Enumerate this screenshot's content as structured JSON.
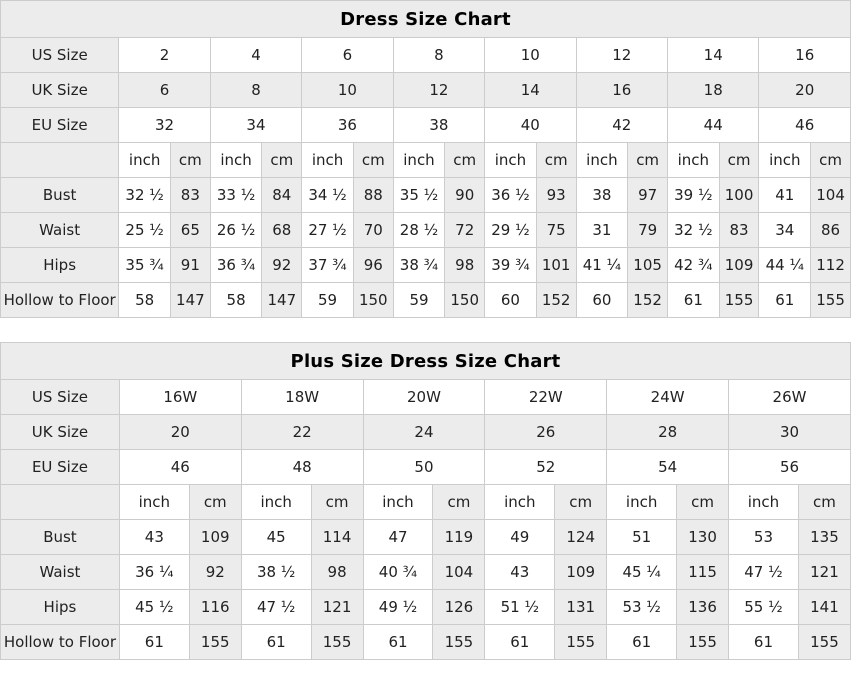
{
  "colors": {
    "shaded_cell": "#ececec",
    "border": "#cccccc",
    "text": "#222222",
    "title_text": "#000000",
    "background": "#ffffff"
  },
  "tables": [
    {
      "title": "Dress Size Chart",
      "size_rows": [
        {
          "label": "US Size",
          "shaded": false,
          "values": [
            "2",
            "4",
            "6",
            "8",
            "10",
            "12",
            "14",
            "16"
          ]
        },
        {
          "label": "UK Size",
          "shaded": true,
          "values": [
            "6",
            "8",
            "10",
            "12",
            "14",
            "16",
            "18",
            "20"
          ]
        },
        {
          "label": "EU Size",
          "shaded": false,
          "values": [
            "32",
            "34",
            "36",
            "38",
            "40",
            "42",
            "44",
            "46"
          ]
        }
      ],
      "unit_row": {
        "label": "",
        "inch_label": "inch",
        "cm_label": "cm"
      },
      "measure_rows": [
        {
          "label": "Bust",
          "pairs": [
            [
              "32 ½",
              "83"
            ],
            [
              "33 ½",
              "84"
            ],
            [
              "34 ½",
              "88"
            ],
            [
              "35 ½",
              "90"
            ],
            [
              "36 ½",
              "93"
            ],
            [
              "38",
              "97"
            ],
            [
              "39 ½",
              "100"
            ],
            [
              "41",
              "104"
            ]
          ]
        },
        {
          "label": "Waist",
          "pairs": [
            [
              "25 ½",
              "65"
            ],
            [
              "26 ½",
              "68"
            ],
            [
              "27 ½",
              "70"
            ],
            [
              "28 ½",
              "72"
            ],
            [
              "29 ½",
              "75"
            ],
            [
              "31",
              "79"
            ],
            [
              "32 ½",
              "83"
            ],
            [
              "34",
              "86"
            ]
          ]
        },
        {
          "label": "Hips",
          "pairs": [
            [
              "35 ¾",
              "91"
            ],
            [
              "36 ¾",
              "92"
            ],
            [
              "37 ¾",
              "96"
            ],
            [
              "38 ¾",
              "98"
            ],
            [
              "39 ¾",
              "101"
            ],
            [
              "41 ¼",
              "105"
            ],
            [
              "42 ¾",
              "109"
            ],
            [
              "44 ¼",
              "112"
            ]
          ]
        },
        {
          "label": "Hollow to Floor",
          "pairs": [
            [
              "58",
              "147"
            ],
            [
              "58",
              "147"
            ],
            [
              "59",
              "150"
            ],
            [
              "59",
              "150"
            ],
            [
              "60",
              "152"
            ],
            [
              "60",
              "152"
            ],
            [
              "61",
              "155"
            ],
            [
              "61",
              "155"
            ]
          ]
        }
      ]
    },
    {
      "title": "Plus Size Dress Size Chart",
      "size_rows": [
        {
          "label": "US Size",
          "shaded": false,
          "values": [
            "16W",
            "18W",
            "20W",
            "22W",
            "24W",
            "26W"
          ]
        },
        {
          "label": "UK Size",
          "shaded": true,
          "values": [
            "20",
            "22",
            "24",
            "26",
            "28",
            "30"
          ]
        },
        {
          "label": "EU Size",
          "shaded": false,
          "values": [
            "46",
            "48",
            "50",
            "52",
            "54",
            "56"
          ]
        }
      ],
      "unit_row": {
        "label": "",
        "inch_label": "inch",
        "cm_label": "cm"
      },
      "measure_rows": [
        {
          "label": "Bust",
          "pairs": [
            [
              "43",
              "109"
            ],
            [
              "45",
              "114"
            ],
            [
              "47",
              "119"
            ],
            [
              "49",
              "124"
            ],
            [
              "51",
              "130"
            ],
            [
              "53",
              "135"
            ]
          ]
        },
        {
          "label": "Waist",
          "pairs": [
            [
              "36 ¼",
              "92"
            ],
            [
              "38 ½",
              "98"
            ],
            [
              "40 ¾",
              "104"
            ],
            [
              "43",
              "109"
            ],
            [
              "45 ¼",
              "115"
            ],
            [
              "47 ½",
              "121"
            ]
          ]
        },
        {
          "label": "Hips",
          "pairs": [
            [
              "45 ½",
              "116"
            ],
            [
              "47 ½",
              "121"
            ],
            [
              "49 ½",
              "126"
            ],
            [
              "51 ½",
              "131"
            ],
            [
              "53 ½",
              "136"
            ],
            [
              "55 ½",
              "141"
            ]
          ]
        },
        {
          "label": "Hollow to Floor",
          "pairs": [
            [
              "61",
              "155"
            ],
            [
              "61",
              "155"
            ],
            [
              "61",
              "155"
            ],
            [
              "61",
              "155"
            ],
            [
              "61",
              "155"
            ],
            [
              "61",
              "155"
            ]
          ]
        }
      ]
    }
  ]
}
